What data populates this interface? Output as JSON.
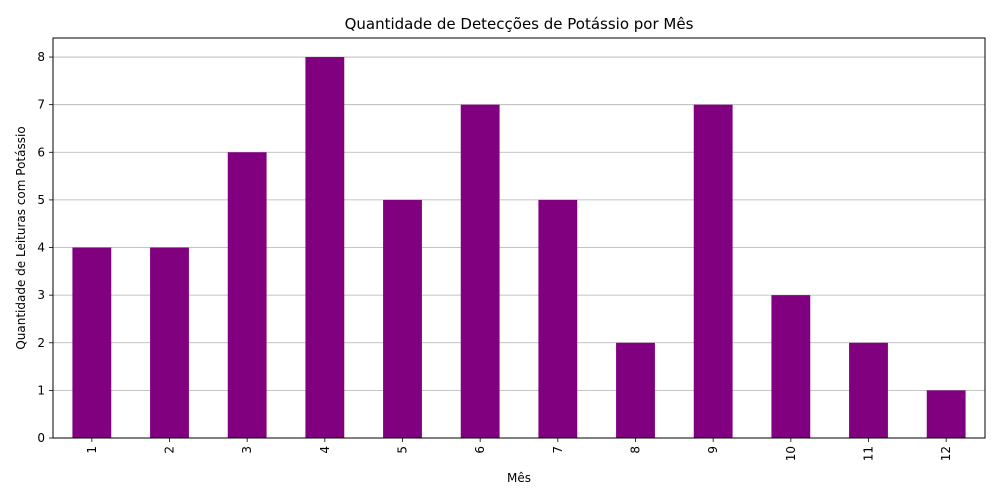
{
  "chart_data": {
    "type": "bar",
    "title": "Quantidade de Detecções de Potássio por Mês",
    "xlabel": "Mês",
    "ylabel": "Quantidade de Leituras com Potássio",
    "categories": [
      "1",
      "2",
      "3",
      "4",
      "5",
      "6",
      "7",
      "8",
      "9",
      "10",
      "11",
      "12"
    ],
    "values": [
      4,
      4,
      6,
      8,
      5,
      7,
      5,
      2,
      7,
      3,
      2,
      1
    ],
    "ylim": [
      0,
      8.4
    ],
    "yticks": [
      "0",
      "1",
      "2",
      "3",
      "4",
      "5",
      "6",
      "7",
      "8"
    ],
    "grid": "y-major",
    "bar_color": "#800080",
    "grid_color": "#b0b0b0",
    "xtick_rotation": "vertical"
  }
}
